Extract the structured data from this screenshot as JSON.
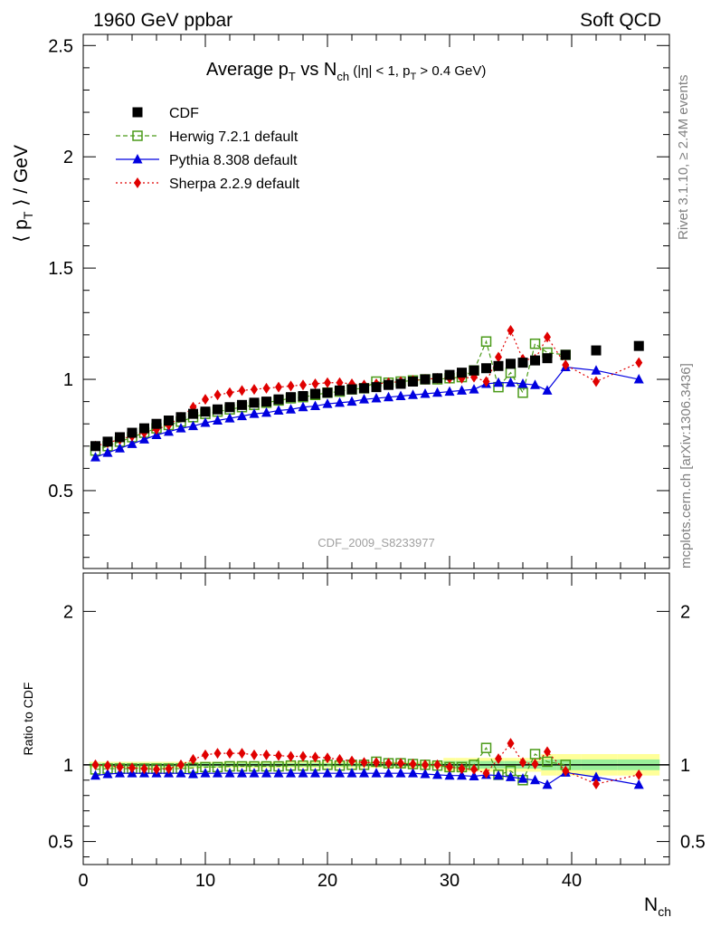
{
  "header": {
    "left": "1960 GeV ppbar",
    "right": "Soft QCD"
  },
  "side_labels": {
    "rivet": "Rivet 3.1.10, ≥ 2.4M events",
    "mcplots": "mcplots.cern.ch [arXiv:1306.3436]"
  },
  "chart_data": [
    {
      "type": "scatter",
      "title": "Average p_T vs N_ch (|η| < 1, p_T > 0.4 GeV)",
      "watermark": "CDF_2009_S8233977",
      "xlabel": "N_ch",
      "ylabel": "⟨ p_T ⟩ / GeV",
      "xlim": [
        0,
        48
      ],
      "ylim": [
        0.15,
        2.55
      ],
      "yticks": [
        0.5,
        1,
        1.5,
        2,
        2.5
      ],
      "xticks": [
        0,
        10,
        20,
        30,
        40
      ],
      "legend_position": "top-left",
      "series": [
        {
          "name": "CDF",
          "color": "#000000",
          "marker": "square-filled",
          "x": [
            1,
            2,
            3,
            4,
            5,
            6,
            7,
            8,
            9,
            10,
            11,
            12,
            13,
            14,
            15,
            16,
            17,
            18,
            19,
            20,
            21,
            22,
            23,
            24,
            25,
            26,
            27,
            28,
            29,
            30,
            31,
            32,
            33,
            34,
            35,
            36,
            37,
            38,
            39.5,
            42,
            45.5
          ],
          "y": [
            0.7,
            0.72,
            0.74,
            0.76,
            0.78,
            0.8,
            0.815,
            0.83,
            0.845,
            0.855,
            0.865,
            0.875,
            0.885,
            0.895,
            0.9,
            0.91,
            0.92,
            0.925,
            0.935,
            0.94,
            0.95,
            0.955,
            0.96,
            0.965,
            0.975,
            0.98,
            0.99,
            1.0,
            1.005,
            1.02,
            1.03,
            1.04,
            1.05,
            1.06,
            1.07,
            1.075,
            1.085,
            1.095,
            1.11,
            1.13,
            1.15
          ]
        },
        {
          "name": "Herwig 7.2.1 default",
          "color": "#4a9a18",
          "marker": "square-open",
          "line": "dashed",
          "x": [
            1,
            2,
            3,
            4,
            5,
            6,
            7,
            8,
            9,
            10,
            11,
            12,
            13,
            14,
            15,
            16,
            17,
            18,
            19,
            20,
            21,
            22,
            23,
            24,
            25,
            26,
            27,
            28,
            29,
            30,
            31,
            32,
            33,
            34,
            35,
            36,
            37,
            38,
            39.5
          ],
          "y": [
            0.68,
            0.7,
            0.72,
            0.74,
            0.76,
            0.78,
            0.795,
            0.81,
            0.83,
            0.845,
            0.855,
            0.865,
            0.875,
            0.885,
            0.895,
            0.905,
            0.915,
            0.92,
            0.93,
            0.94,
            0.945,
            0.955,
            0.96,
            0.99,
            0.985,
            0.99,
            0.995,
            1.0,
            1.0,
            1.005,
            1.01,
            1.04,
            1.17,
            0.965,
            1.03,
            0.94,
            1.16,
            1.12,
            1.11
          ]
        },
        {
          "name": "Pythia 8.308 default",
          "color": "#0000e0",
          "marker": "triangle-filled",
          "line": "solid",
          "x": [
            1,
            2,
            3,
            4,
            5,
            6,
            7,
            8,
            9,
            10,
            11,
            12,
            13,
            14,
            15,
            16,
            17,
            18,
            19,
            20,
            21,
            22,
            23,
            24,
            25,
            26,
            27,
            28,
            29,
            30,
            31,
            32,
            33,
            34,
            35,
            36,
            37,
            38,
            39.5,
            42,
            45.5
          ],
          "y": [
            0.65,
            0.67,
            0.69,
            0.71,
            0.73,
            0.75,
            0.765,
            0.78,
            0.79,
            0.805,
            0.815,
            0.825,
            0.835,
            0.845,
            0.85,
            0.86,
            0.865,
            0.875,
            0.88,
            0.89,
            0.895,
            0.9,
            0.91,
            0.915,
            0.92,
            0.925,
            0.93,
            0.935,
            0.94,
            0.945,
            0.95,
            0.955,
            0.98,
            0.985,
            0.985,
            0.98,
            0.975,
            0.95,
            1.055,
            1.04,
            1.0
          ]
        },
        {
          "name": "Sherpa 2.2.9 default",
          "color": "#e00000",
          "marker": "diamond-filled",
          "line": "dotted",
          "x": [
            1,
            2,
            3,
            4,
            5,
            6,
            7,
            8,
            9,
            10,
            11,
            12,
            13,
            14,
            15,
            16,
            17,
            18,
            19,
            20,
            21,
            22,
            23,
            24,
            25,
            26,
            27,
            28,
            29,
            30,
            31,
            32,
            33,
            34,
            35,
            36,
            37,
            38,
            39.5,
            42,
            45.5
          ],
          "y": [
            0.7,
            0.715,
            0.73,
            0.745,
            0.76,
            0.775,
            0.795,
            0.83,
            0.875,
            0.91,
            0.93,
            0.94,
            0.95,
            0.955,
            0.96,
            0.965,
            0.97,
            0.975,
            0.98,
            0.985,
            0.985,
            0.98,
            0.975,
            0.98,
            0.985,
            0.99,
            0.995,
            1.0,
            1.005,
            1.005,
            1.005,
            1.01,
            0.99,
            1.1,
            1.22,
            1.09,
            1.09,
            1.19,
            1.065,
            0.99,
            1.075
          ]
        }
      ]
    },
    {
      "type": "scatter",
      "ylabel": "Ratio to CDF",
      "xlabel": "N_ch",
      "xlim": [
        0,
        48
      ],
      "ylim": [
        0.35,
        2.25
      ],
      "yticks": [
        0.5,
        1,
        2
      ],
      "xticks": [
        0,
        10,
        20,
        30,
        40
      ],
      "reference": 1,
      "series": [
        {
          "name": "Herwig 7.2.1 default",
          "color": "#4a9a18",
          "x": [
            1,
            2,
            3,
            4,
            5,
            6,
            7,
            8,
            9,
            10,
            11,
            12,
            13,
            14,
            15,
            16,
            17,
            18,
            19,
            20,
            21,
            22,
            23,
            24,
            25,
            26,
            27,
            28,
            29,
            30,
            31,
            32,
            33,
            34,
            35,
            36,
            37,
            38,
            39.5
          ],
          "y": [
            0.97,
            0.975,
            0.975,
            0.975,
            0.975,
            0.975,
            0.975,
            0.975,
            0.98,
            0.985,
            0.985,
            0.99,
            0.99,
            0.99,
            0.99,
            0.99,
            0.995,
            0.995,
            0.995,
            1.0,
            0.995,
            1.0,
            1.0,
            1.02,
            1.01,
            1.01,
            1.005,
            1.0,
            0.995,
            0.985,
            0.985,
            1.0,
            1.11,
            0.935,
            0.96,
            0.9,
            1.07,
            1.02,
            1.0
          ]
        },
        {
          "name": "Pythia 8.308 default",
          "color": "#0000e0",
          "x": [
            1,
            2,
            3,
            4,
            5,
            6,
            7,
            8,
            9,
            10,
            11,
            12,
            13,
            14,
            15,
            16,
            17,
            18,
            19,
            20,
            21,
            22,
            23,
            24,
            25,
            26,
            27,
            28,
            29,
            30,
            31,
            32,
            33,
            34,
            35,
            36,
            37,
            38,
            39.5,
            42,
            45.5
          ],
          "y": [
            0.93,
            0.94,
            0.945,
            0.945,
            0.945,
            0.945,
            0.945,
            0.945,
            0.94,
            0.945,
            0.945,
            0.945,
            0.945,
            0.945,
            0.945,
            0.945,
            0.945,
            0.945,
            0.945,
            0.945,
            0.945,
            0.945,
            0.945,
            0.945,
            0.945,
            0.945,
            0.945,
            0.94,
            0.935,
            0.93,
            0.93,
            0.925,
            0.935,
            0.93,
            0.92,
            0.91,
            0.9,
            0.87,
            0.95,
            0.92,
            0.87
          ]
        },
        {
          "name": "Sherpa 2.2.9 default",
          "color": "#e00000",
          "x": [
            1,
            2,
            3,
            4,
            5,
            6,
            7,
            8,
            9,
            10,
            11,
            12,
            13,
            14,
            15,
            16,
            17,
            18,
            19,
            20,
            21,
            22,
            23,
            24,
            25,
            26,
            27,
            28,
            29,
            30,
            31,
            32,
            33,
            34,
            35,
            36,
            37,
            38,
            39.5,
            42,
            45.5
          ],
          "y": [
            1.0,
            0.995,
            0.985,
            0.98,
            0.975,
            0.97,
            0.975,
            1.0,
            1.035,
            1.065,
            1.075,
            1.075,
            1.075,
            1.065,
            1.065,
            1.06,
            1.055,
            1.055,
            1.05,
            1.045,
            1.035,
            1.025,
            1.015,
            1.015,
            1.01,
            1.01,
            1.005,
            1.0,
            1.0,
            0.985,
            0.975,
            0.97,
            0.945,
            1.04,
            1.14,
            1.015,
            1.005,
            1.085,
            0.96,
            0.875,
            0.935
          ]
        }
      ]
    }
  ]
}
